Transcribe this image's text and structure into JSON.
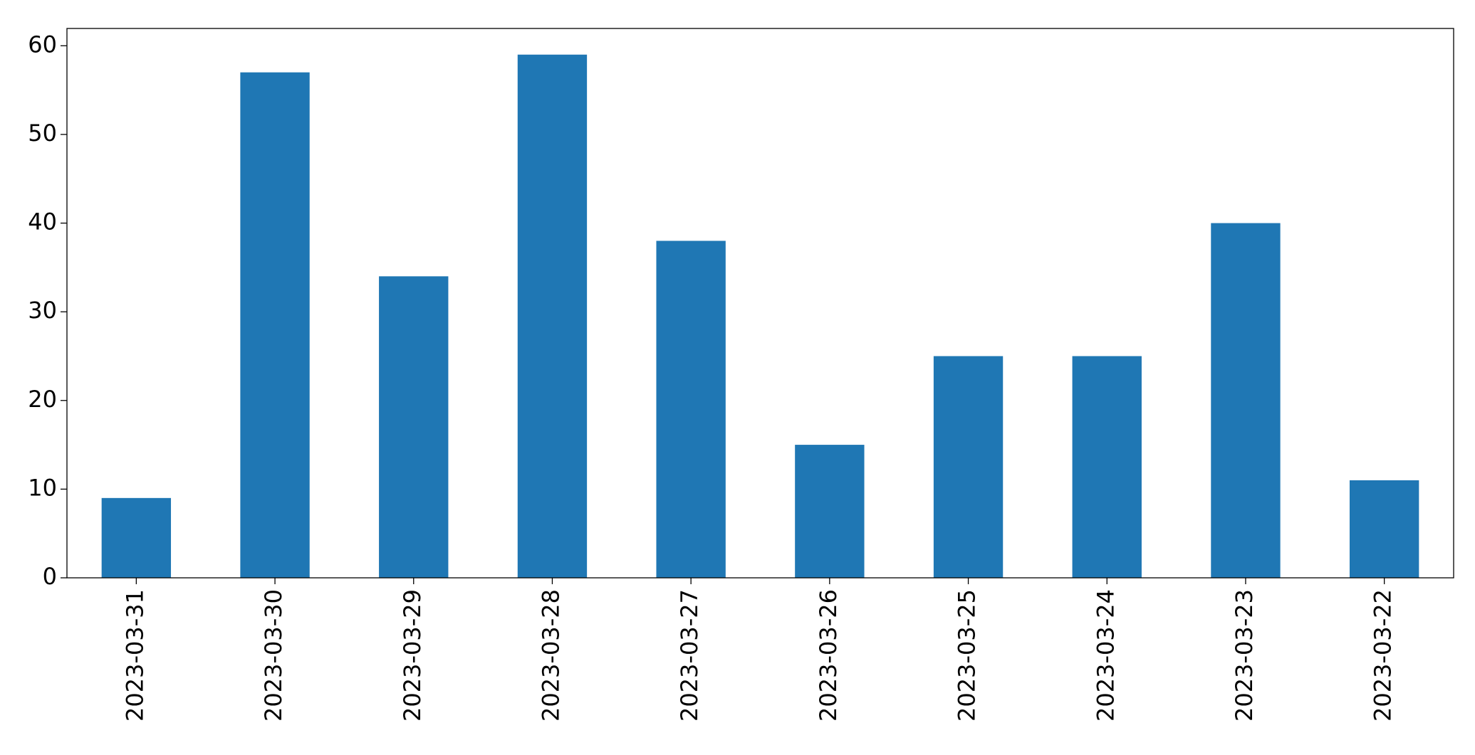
{
  "chart_data": {
    "type": "bar",
    "categories": [
      "2023-03-31",
      "2023-03-30",
      "2023-03-29",
      "2023-03-28",
      "2023-03-27",
      "2023-03-26",
      "2023-03-25",
      "2023-03-24",
      "2023-03-23",
      "2023-03-22"
    ],
    "values": [
      9,
      57,
      34,
      59,
      38,
      15,
      25,
      25,
      40,
      11
    ],
    "color": "#1f77b4",
    "ylim": [
      0,
      61.95
    ],
    "yticks": [
      0,
      10,
      20,
      30,
      40,
      50,
      60
    ],
    "grid": false
  }
}
